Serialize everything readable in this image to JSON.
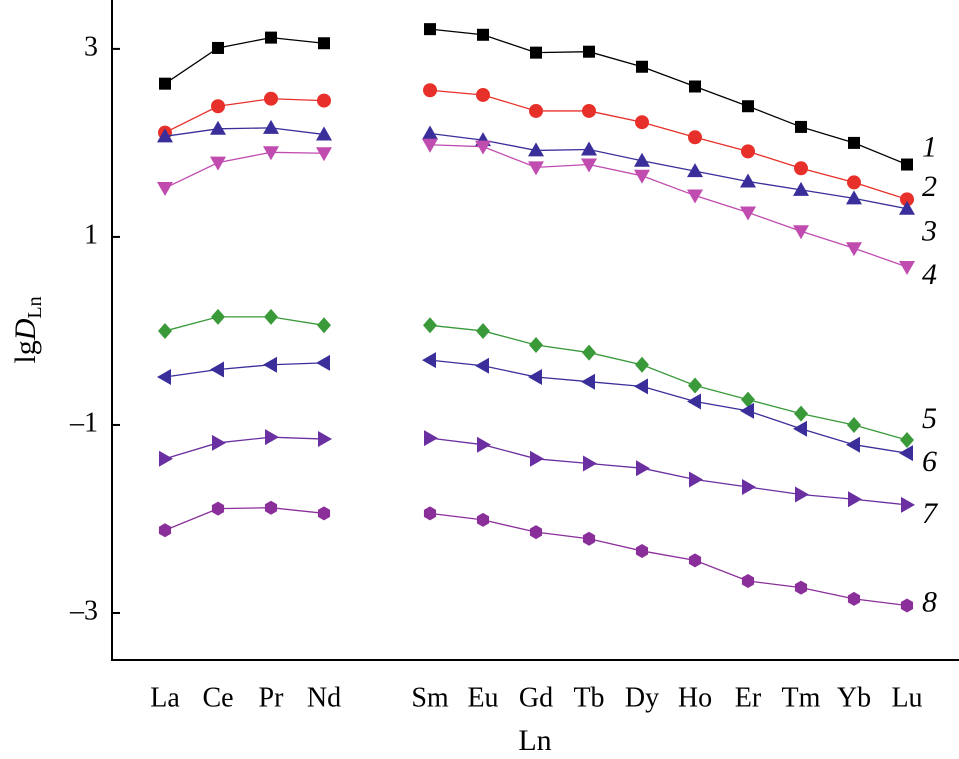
{
  "chart_data": {
    "type": "line",
    "ylabel": {
      "base": "lg",
      "italic": "D",
      "sub": "Ln"
    },
    "xlabel": "Ln",
    "categories": [
      "La",
      "Ce",
      "Pr",
      "Nd",
      null,
      "Sm",
      "Eu",
      "Gd",
      "Tb",
      "Dy",
      "Ho",
      "Er",
      "Tm",
      "Yb",
      "Lu"
    ],
    "ylim": [
      -3.5,
      3.52
    ],
    "yticks": [
      {
        "value": -3,
        "label": "–3"
      },
      {
        "value": -1,
        "label": "–1"
      },
      1,
      3
    ],
    "series": [
      {
        "name": "1",
        "color": "#000000",
        "marker": "square",
        "values": [
          2.63,
          3.01,
          3.12,
          3.06,
          null,
          3.21,
          3.15,
          2.96,
          2.97,
          2.81,
          2.6,
          2.39,
          2.17,
          2.0,
          1.77
        ]
      },
      {
        "name": "2",
        "color": "#e8302a",
        "marker": "circle",
        "values": [
          2.11,
          2.39,
          2.47,
          2.45,
          null,
          2.56,
          2.51,
          2.34,
          2.34,
          2.22,
          2.06,
          1.91,
          1.73,
          1.58,
          1.4
        ]
      },
      {
        "name": "3",
        "color": "#3a2f9a",
        "marker": "triangle-up",
        "values": [
          2.07,
          2.15,
          2.16,
          2.09,
          null,
          2.1,
          2.03,
          1.92,
          1.93,
          1.81,
          1.7,
          1.59,
          1.5,
          1.41,
          1.3
        ]
      },
      {
        "name": "4",
        "color": "#c04cb0",
        "marker": "triangle-down",
        "values": [
          1.52,
          1.79,
          1.9,
          1.89,
          null,
          1.98,
          1.96,
          1.74,
          1.77,
          1.65,
          1.44,
          1.26,
          1.06,
          0.88,
          0.68
        ]
      },
      {
        "name": "5",
        "color": "#3a9a3a",
        "marker": "diamond",
        "values": [
          0.0,
          0.15,
          0.15,
          0.06,
          null,
          0.06,
          0.0,
          -0.15,
          -0.23,
          -0.36,
          -0.58,
          -0.73,
          -0.88,
          -1.0,
          -1.16
        ]
      },
      {
        "name": "6",
        "color": "#3a2f9a",
        "marker": "triangle-left",
        "values": [
          -0.49,
          -0.41,
          -0.36,
          -0.34,
          null,
          -0.31,
          -0.37,
          -0.49,
          -0.54,
          -0.59,
          -0.75,
          -0.85,
          -1.04,
          -1.21,
          -1.3
        ]
      },
      {
        "name": "7",
        "color": "#6a2fa0",
        "marker": "triangle-right",
        "values": [
          -1.36,
          -1.19,
          -1.13,
          -1.15,
          null,
          -1.14,
          -1.21,
          -1.36,
          -1.41,
          -1.46,
          -1.58,
          -1.66,
          -1.74,
          -1.79,
          -1.85
        ]
      },
      {
        "name": "8",
        "color": "#8a2f9a",
        "marker": "hexagon",
        "values": [
          -2.12,
          -1.89,
          -1.88,
          -1.94,
          null,
          -1.94,
          -2.01,
          -2.14,
          -2.21,
          -2.34,
          -2.44,
          -2.66,
          -2.73,
          -2.85,
          -2.92
        ]
      }
    ]
  }
}
